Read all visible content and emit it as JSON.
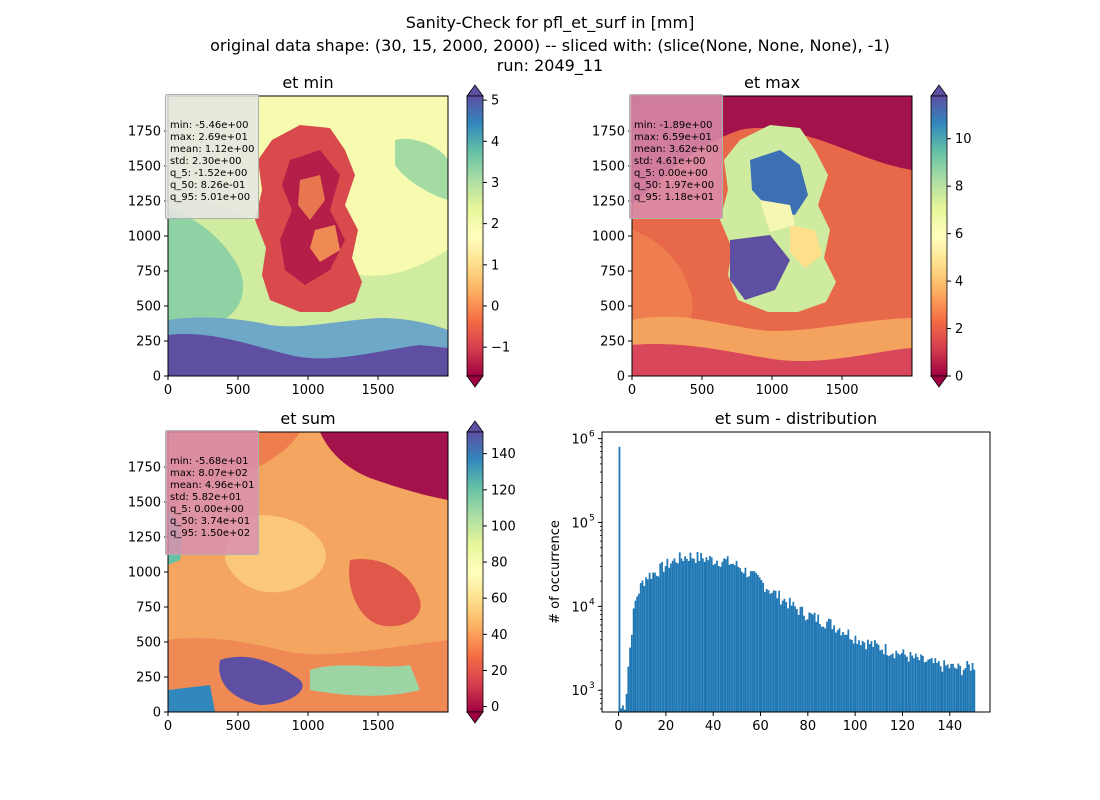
{
  "figure": {
    "title_lines": [
      "Sanity-Check for pfl_et_surf in [mm]",
      "original data shape: (30, 15, 2000, 2000) -- sliced with: (slice(None, None, None), -1)",
      "run: 2049_11"
    ]
  },
  "colormap": {
    "name": "Spectral",
    "stops": [
      "#9e0142",
      "#d53e4f",
      "#f46d43",
      "#fdae61",
      "#fee08b",
      "#ffffbf",
      "#e6f598",
      "#abdda4",
      "#66c2a5",
      "#3288bd",
      "#5e4fa2"
    ]
  },
  "chart_data": [
    {
      "id": "et_min",
      "type": "heatmap",
      "title": "et min",
      "xlim": [
        0,
        2000
      ],
      "ylim": [
        0,
        2000
      ],
      "xticks": [
        0,
        500,
        1000,
        1500
      ],
      "yticks": [
        0,
        250,
        500,
        750,
        1000,
        1250,
        1500,
        1750
      ],
      "colorbar": {
        "vmin": -1.7,
        "vmax": 5.1,
        "ticks": [
          -1,
          0,
          1,
          2,
          3,
          4,
          5
        ],
        "extend": "both"
      },
      "stats": [
        "min: -5.46e+00",
        "max: 2.69e+01",
        "mean: 1.12e+00",
        "std: 2.30e+00",
        "q_5: -1.52e+00",
        "q_50: 8.26e-01",
        "q_95: 5.01e+00"
      ],
      "stats_box_color": "#e5e5e5"
    },
    {
      "id": "et_max",
      "type": "heatmap",
      "title": "et max",
      "xlim": [
        0,
        2000
      ],
      "ylim": [
        0,
        2000
      ],
      "xticks": [
        0,
        500,
        1000,
        1500
      ],
      "yticks": [
        0,
        250,
        500,
        750,
        1000,
        1250,
        1500,
        1750
      ],
      "colorbar": {
        "vmin": 0,
        "vmax": 11.8,
        "ticks": [
          0,
          2,
          4,
          6,
          8,
          10
        ],
        "extend": "both"
      },
      "stats": [
        "min: -1.89e+00",
        "max: 6.59e+01",
        "mean: 3.62e+00",
        "std: 4.61e+00",
        "q_5: 0.00e+00",
        "q_50: 1.97e+00",
        "q_95: 1.18e+01"
      ],
      "stats_box_color": "#d98fae"
    },
    {
      "id": "et_sum",
      "type": "heatmap",
      "title": "et sum",
      "xlim": [
        0,
        2000
      ],
      "ylim": [
        0,
        2000
      ],
      "xticks": [
        0,
        500,
        1000,
        1500
      ],
      "yticks": [
        0,
        250,
        500,
        750,
        1000,
        1250,
        1500,
        1750
      ],
      "colorbar": {
        "vmin": -3,
        "vmax": 152,
        "ticks": [
          0,
          20,
          40,
          60,
          80,
          100,
          120,
          140
        ],
        "extend": "both"
      },
      "stats": [
        "min: -5.68e+01",
        "max: 8.07e+02",
        "mean: 4.96e+01",
        "std: 5.82e+01",
        "q_5: 0.00e+00",
        "q_50: 3.74e+01",
        "q_95: 1.50e+02"
      ],
      "stats_box_color": "#d98fae"
    },
    {
      "id": "et_sum_dist",
      "type": "bar",
      "title": "et sum - distribution",
      "ylabel": "# of occurrence",
      "yscale": "log",
      "xlim": [
        -7,
        157
      ],
      "ylim": [
        550,
        1200000
      ],
      "xticks": [
        0,
        20,
        40,
        60,
        80,
        100,
        120,
        140
      ],
      "yticks": [
        {
          "value": 1000,
          "label": "10",
          "exp": "3"
        },
        {
          "value": 10000,
          "label": "10",
          "exp": "4"
        },
        {
          "value": 100000,
          "label": "10",
          "exp": "5"
        },
        {
          "value": 1000000,
          "label": "10",
          "exp": "6"
        }
      ],
      "bar_color": "#1f77b4",
      "bin_width": 0.75,
      "anchors": [
        [
          0.2,
          800000
        ],
        [
          0.9,
          600
        ],
        [
          3,
          700
        ],
        [
          4,
          1800
        ],
        [
          5,
          3500
        ],
        [
          6,
          7000
        ],
        [
          7,
          11000
        ],
        [
          8,
          14000
        ],
        [
          10,
          19000
        ],
        [
          12,
          23000
        ],
        [
          15,
          25000
        ],
        [
          20,
          31000
        ],
        [
          25,
          37000
        ],
        [
          30,
          40000
        ],
        [
          35,
          38000
        ],
        [
          40,
          36000
        ],
        [
          45,
          35000
        ],
        [
          50,
          31000
        ],
        [
          55,
          25000
        ],
        [
          60,
          20000
        ],
        [
          65,
          15000
        ],
        [
          70,
          12000
        ],
        [
          75,
          9500
        ],
        [
          80,
          8000
        ],
        [
          85,
          7000
        ],
        [
          90,
          6200
        ],
        [
          95,
          5200
        ],
        [
          100,
          4300
        ],
        [
          105,
          3700
        ],
        [
          110,
          3300
        ],
        [
          115,
          3000
        ],
        [
          120,
          2700
        ],
        [
          125,
          2400
        ],
        [
          130,
          2200
        ],
        [
          135,
          2000
        ],
        [
          140,
          1900
        ],
        [
          145,
          1800
        ],
        [
          150,
          2000
        ]
      ]
    }
  ]
}
